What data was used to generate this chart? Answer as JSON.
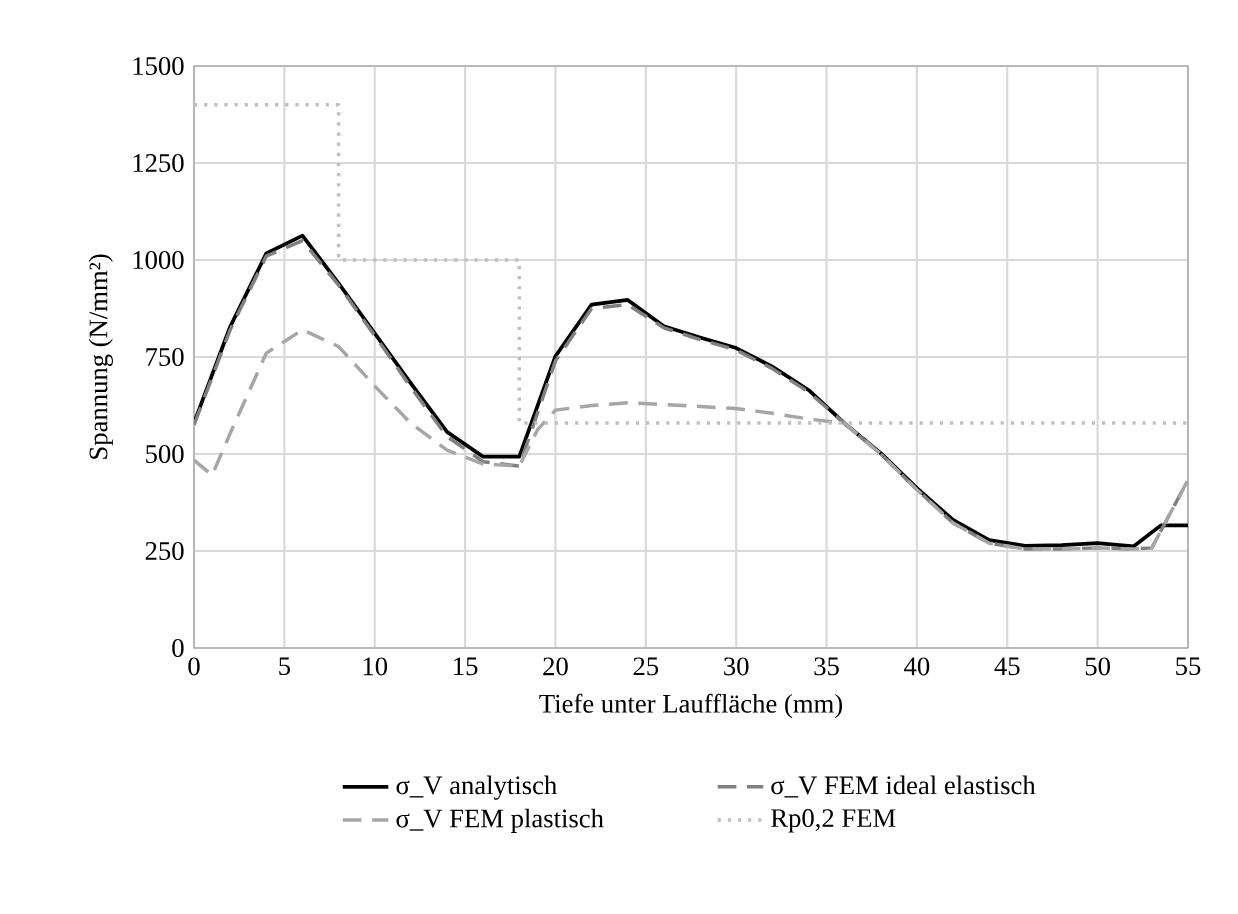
{
  "chart_data": {
    "type": "line",
    "xlabel": "Tiefe unter Lauffläche (mm)",
    "ylabel": "Spannung (N/mm²)",
    "xlim": [
      0,
      55
    ],
    "ylim": [
      0,
      1500
    ],
    "xticks": [
      0,
      5,
      10,
      15,
      20,
      25,
      30,
      35,
      40,
      45,
      50,
      55
    ],
    "yticks": [
      0,
      250,
      500,
      750,
      1000,
      1250,
      1500
    ],
    "grid": true,
    "legend": "bottom",
    "series": [
      {
        "name": "σ_V analytisch",
        "color": "#000000",
        "line_style": "solid",
        "x": [
          0,
          2,
          4,
          6,
          8,
          10,
          12,
          14,
          16,
          18,
          20,
          22,
          24,
          26,
          28,
          30,
          32,
          34,
          36,
          38,
          40,
          42,
          44,
          46,
          48,
          50,
          52,
          53.5,
          55
        ],
        "values": [
          580,
          828,
          1017,
          1063,
          940,
          811,
          682,
          557,
          493,
          493,
          752,
          885,
          897,
          829,
          800,
          773,
          725,
          665,
          579,
          502,
          412,
          330,
          278,
          263,
          265,
          270,
          262,
          316,
          316
        ]
      },
      {
        "name": "σ_V FEM ideal elastisch",
        "color": "#808080",
        "line_style": "dashed",
        "x": [
          0,
          2,
          4,
          6,
          8,
          10,
          12,
          14,
          16,
          18,
          20,
          22,
          24,
          26,
          28,
          30,
          32,
          34,
          36,
          38,
          40,
          42,
          44,
          46,
          48,
          50,
          52,
          53,
          55
        ],
        "values": [
          575,
          820,
          1010,
          1050,
          935,
          805,
          672,
          545,
          480,
          469,
          740,
          875,
          885,
          825,
          795,
          768,
          720,
          660,
          579,
          500,
          408,
          322,
          270,
          255,
          255,
          258,
          255,
          258,
          433
        ]
      },
      {
        "name": "σ_V FEM plastisch",
        "color": "#a6a6a6",
        "line_style": "dashed",
        "x": [
          0,
          1,
          2,
          4,
          6,
          8,
          10,
          12,
          14,
          16,
          18,
          19,
          20,
          22,
          24,
          27,
          30,
          32,
          34,
          36,
          38,
          40,
          42,
          44,
          46,
          48,
          50,
          52,
          53,
          55
        ],
        "values": [
          484,
          445,
          553,
          760,
          820,
          777,
          675,
          579,
          510,
          474,
          469,
          562,
          613,
          625,
          632,
          625,
          617,
          605,
          590,
          579,
          500,
          408,
          322,
          270,
          255,
          255,
          258,
          255,
          258,
          433
        ]
      },
      {
        "name": "Rp0,2 FEM",
        "color": "#bfbfbf",
        "line_style": "dotted",
        "x": [
          0,
          8,
          8,
          18,
          18,
          55
        ],
        "values": [
          1400,
          1400,
          1000,
          1000,
          580,
          580
        ]
      }
    ]
  }
}
